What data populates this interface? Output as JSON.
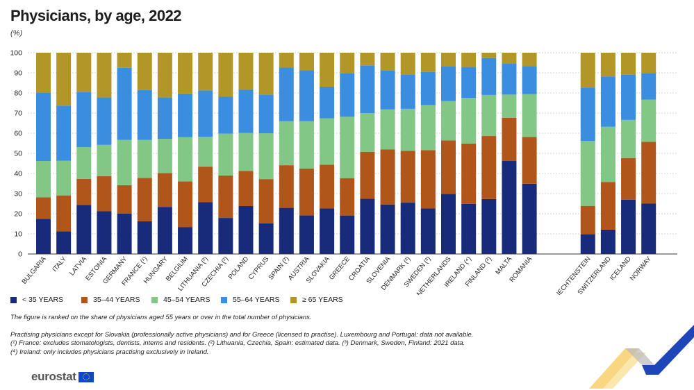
{
  "title": "Physicians, by age, 2022",
  "unit": "(%)",
  "legend": [
    {
      "label": "< 35 YEARS",
      "color": "#172b7a"
    },
    {
      "label": "35–44 YEARS",
      "color": "#b0561a"
    },
    {
      "label": "45–54 YEARS",
      "color": "#82c785"
    },
    {
      "label": "55–64 YEARS",
      "color": "#3b8de0"
    },
    {
      "label": "≥ 65 YEARS",
      "color": "#b39628"
    }
  ],
  "notes": {
    "ranking": "The figure is ranked on the share of physicians aged 55 years or over in the total number of physicians.",
    "line1": "Practising physicians except for Slovakia (professionally active physicians) and for Greece (licensed to practise). Luxembourg and Portugal: data not available.",
    "line2": "(¹) France: excludes stomatologists, dentists, interns and residents. (²) Lithuania, Czechia, Spain: estimated data. (³) Denmark, Sweden, Finland: 2021 data.",
    "line3": "(⁴) Ireland: only includes physicians practising exclusively in Ireland."
  },
  "logo": {
    "text": "eurostat"
  },
  "chart_data": {
    "type": "bar",
    "stacked": true,
    "ylim": [
      0,
      100
    ],
    "yticks": [
      0,
      10,
      20,
      30,
      40,
      50,
      60,
      70,
      80,
      90,
      100
    ],
    "grid": true,
    "legend_position": "bottom",
    "categories": [
      "BULGARIA",
      "ITALY",
      "LATVIA",
      "ESTONIA",
      "GERMANY",
      "FRANCE (¹)",
      "HUNGARY",
      "BELGIUM",
      "LITHUANIA (²)",
      "CZECHIA (²)",
      "POLAND",
      "CYPRUS",
      "SPAIN (²)",
      "AUSTRIA",
      "SLOVAKIA",
      "GREECE",
      "CROATIA",
      "SLOVENIA",
      "DENMARK (³)",
      "SWEDEN (³)",
      "NETHERLANDS",
      "IRELAND (⁴)",
      "FINLAND (³)",
      "MALTA",
      "ROMANIA",
      "LIECHTENSTEIN",
      "SWITZERLAND",
      "ICELAND",
      "NORWAY"
    ],
    "series": [
      {
        "name": "< 35 YEARS",
        "color": "#172b7a",
        "values": [
          17.5,
          11.3,
          24.3,
          21.2,
          20.0,
          16.2,
          23.4,
          13.4,
          25.8,
          17.9,
          23.8,
          15.2,
          22.9,
          19.2,
          22.6,
          19.1,
          27.4,
          24.6,
          25.5,
          22.6,
          29.8,
          24.9,
          27.3,
          46.2,
          34.9,
          9.8,
          12.1,
          27.0,
          25.0
        ]
      },
      {
        "name": "35–44 YEARS",
        "color": "#b0561a",
        "values": [
          10.6,
          17.8,
          13.0,
          17.5,
          14.2,
          21.6,
          16.8,
          22.7,
          17.6,
          21.1,
          17.5,
          22.0,
          21.2,
          23.3,
          21.8,
          18.6,
          23.3,
          27.4,
          25.8,
          29.0,
          26.6,
          30.0,
          31.3,
          21.4,
          23.2,
          14.1,
          23.7,
          20.6,
          30.7
        ]
      },
      {
        "name": "45–54 YEARS",
        "color": "#82c785",
        "values": [
          18.1,
          17.2,
          15.8,
          15.5,
          22.5,
          18.9,
          17.0,
          22.0,
          14.8,
          20.8,
          18.8,
          22.8,
          21.9,
          23.5,
          23.0,
          30.5,
          19.3,
          19.8,
          20.8,
          22.4,
          19.6,
          22.6,
          20.4,
          11.6,
          21.3,
          32.3,
          27.4,
          19.0,
          21.0
        ]
      },
      {
        "name": "55–64 YEARS",
        "color": "#3b8de0",
        "values": [
          33.8,
          27.4,
          27.5,
          23.6,
          35.8,
          24.7,
          20.6,
          21.6,
          23.1,
          18.3,
          21.7,
          19.2,
          26.6,
          25.2,
          15.7,
          21.7,
          23.7,
          19.5,
          17.1,
          16.4,
          17.1,
          15.4,
          18.3,
          15.5,
          13.9,
          26.5,
          25.0,
          22.5,
          13.2
        ]
      },
      {
        "name": "≥ 65 YEARS",
        "color": "#b39628",
        "values": [
          20.0,
          26.3,
          19.4,
          22.2,
          7.5,
          18.6,
          22.2,
          20.3,
          18.7,
          21.9,
          18.2,
          20.8,
          7.4,
          8.8,
          16.9,
          10.1,
          6.3,
          8.7,
          10.8,
          9.6,
          6.9,
          7.1,
          2.7,
          5.3,
          6.7,
          17.3,
          11.8,
          10.9,
          10.1
        ]
      }
    ]
  }
}
